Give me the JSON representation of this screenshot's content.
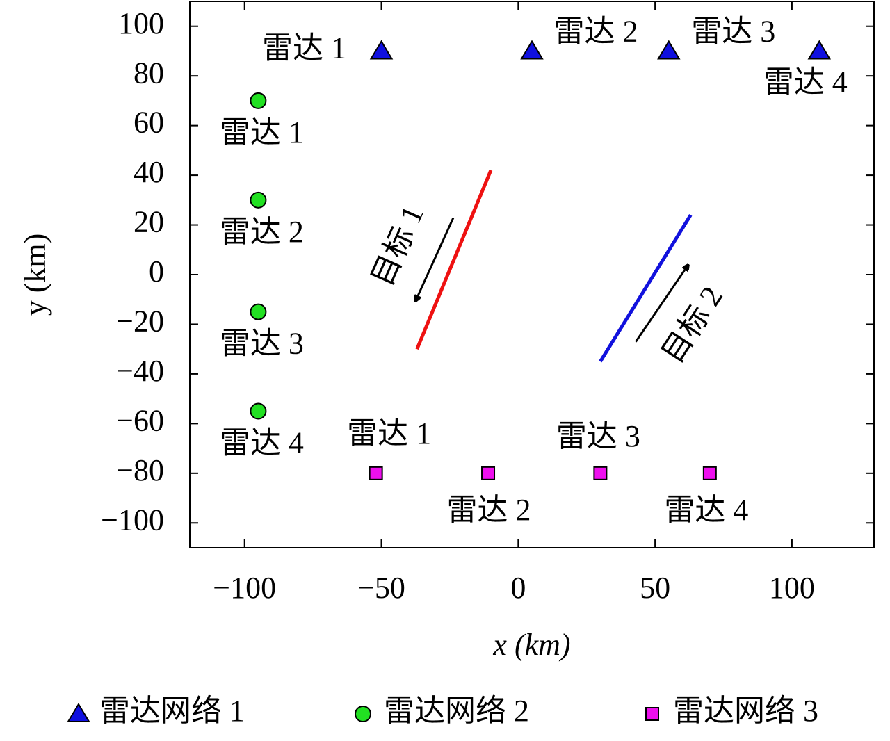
{
  "chart_data": {
    "type": "scatter",
    "x_label": "x (km)",
    "y_label": "y (km)",
    "xlim": [
      -120,
      130
    ],
    "ylim": [
      -110,
      110
    ],
    "xticks": [
      {
        "value": -100,
        "label": "−100"
      },
      {
        "value": -50,
        "label": "−50"
      },
      0,
      50,
      100
    ],
    "yticks": [
      {
        "value": -100,
        "label": "−100"
      },
      {
        "value": -80,
        "label": "−80"
      },
      {
        "value": -60,
        "label": "−60"
      },
      {
        "value": -40,
        "label": "−40"
      },
      {
        "value": -20,
        "label": "−20"
      },
      0,
      20,
      40,
      60,
      80,
      100
    ],
    "series": [
      {
        "name": "雷达网络 1",
        "marker": "triangle",
        "color": "#1010e0",
        "x": [
          -50,
          5,
          55,
          110
        ],
        "values": [
          90,
          90,
          90,
          90
        ],
        "labels": [
          "雷达 1",
          "雷达 2",
          "雷达 3",
          "雷达 4"
        ]
      },
      {
        "name": "雷达网络 2",
        "marker": "circle",
        "color": "#22e022",
        "x": [
          -95,
          -95,
          -95,
          -95
        ],
        "values": [
          70,
          30,
          -15,
          -55
        ],
        "labels": [
          "雷达 1",
          "雷达 2",
          "雷达 3",
          "雷达 4"
        ]
      },
      {
        "name": "雷达网络 3",
        "marker": "square",
        "color": "#ee10ee",
        "x": [
          -52,
          -11,
          30,
          70
        ],
        "values": [
          -80,
          -80,
          -80,
          -80
        ],
        "labels": [
          "雷达 1",
          "雷达 2",
          "雷达 3",
          "雷达 4"
        ]
      }
    ],
    "lines": [
      {
        "name": "目标 1",
        "color": "#ee1111",
        "x": [
          -37,
          -10
        ],
        "values": [
          -30,
          42
        ]
      },
      {
        "name": "目标 2",
        "color": "#1111dd",
        "x": [
          30,
          63
        ],
        "values": [
          -35,
          24
        ]
      }
    ]
  }
}
